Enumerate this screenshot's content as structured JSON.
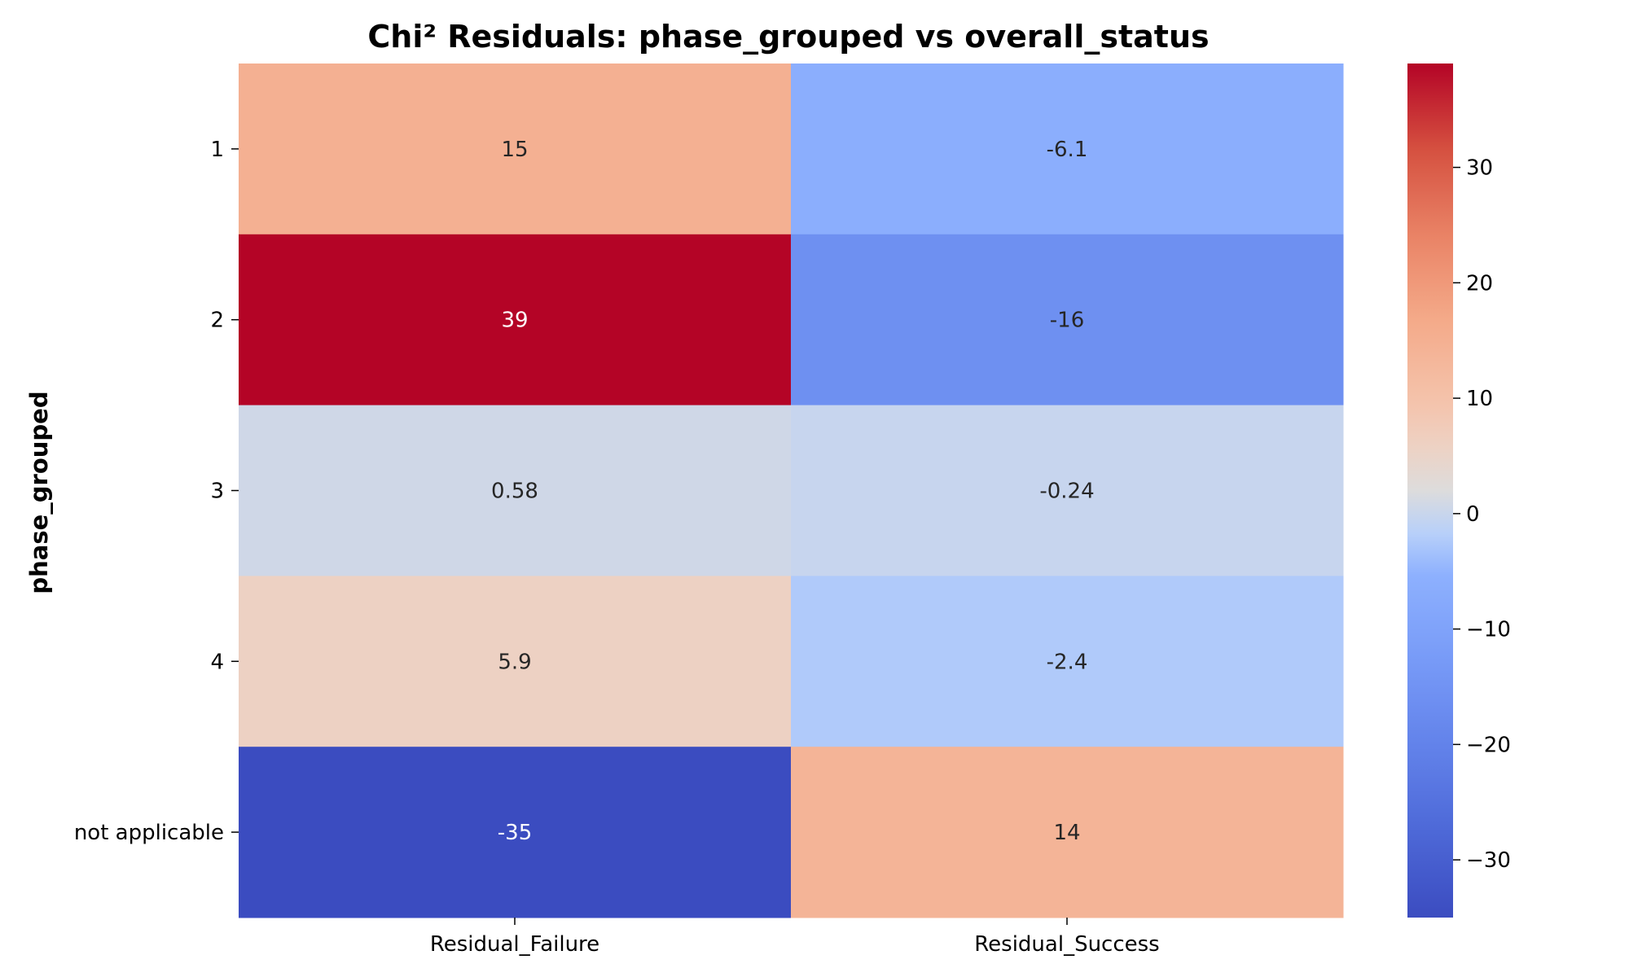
{
  "chart_data": {
    "type": "heatmap",
    "title": "Chi² Residuals: phase_grouped vs overall_status",
    "xlabel": "",
    "ylabel": "phase_grouped",
    "rows": [
      "1",
      "2",
      "3",
      "4",
      "not applicable"
    ],
    "columns": [
      "Residual_Failure",
      "Residual_Success"
    ],
    "values": [
      [
        15,
        -6.1
      ],
      [
        39,
        -16
      ],
      [
        0.58,
        -0.24
      ],
      [
        5.9,
        -2.4
      ],
      [
        -35,
        14
      ]
    ],
    "cell_labels": [
      [
        "15",
        "-6.1"
      ],
      [
        "39",
        "-16"
      ],
      [
        "0.58",
        "-0.24"
      ],
      [
        "5.9",
        "-2.4"
      ],
      [
        "-35",
        "14"
      ]
    ],
    "colormap": "coolwarm",
    "color_range": [
      -35,
      39
    ],
    "colorbar": {
      "ticks": [
        30,
        20,
        10,
        0,
        -10,
        -20,
        -30
      ],
      "tick_labels": [
        "30",
        "20",
        "10",
        "0",
        "−10",
        "−20",
        "−30"
      ]
    },
    "grid": false
  }
}
